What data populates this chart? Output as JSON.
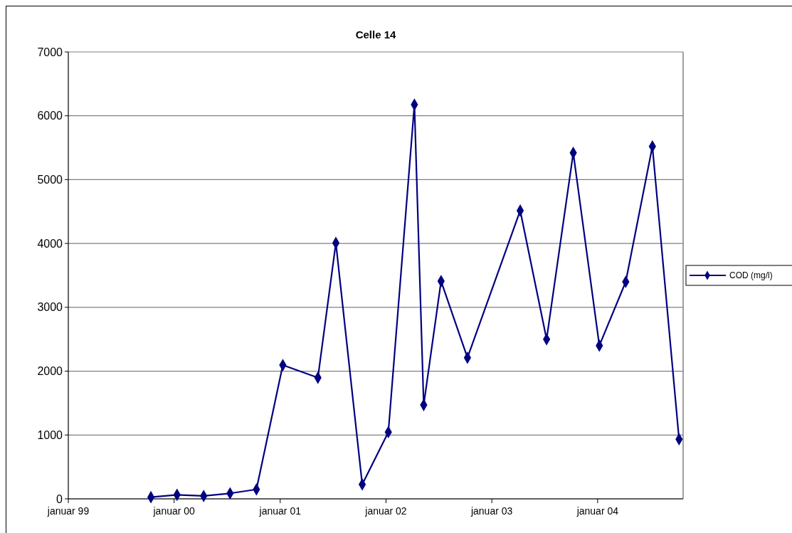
{
  "chart_data": {
    "type": "line",
    "title": "Celle 14",
    "x": [
      "1999-10-13",
      "2000-01-11",
      "2000-04-12",
      "2000-07-12",
      "2000-10-11",
      "2001-01-10",
      "2001-05-11",
      "2001-07-12",
      "2001-10-11",
      "2002-01-09",
      "2002-04-09",
      "2002-05-11",
      "2002-07-10",
      "2002-10-09",
      "2003-04-09",
      "2003-07-09",
      "2003-10-09",
      "2004-01-07",
      "2004-04-07",
      "2004-07-08",
      "2004-10-08"
    ],
    "series": [
      {
        "name": "COD (mg/l)",
        "color": "#000080",
        "values": [
          26,
          63,
          45,
          86,
          148,
          2095,
          1897,
          4008,
          226,
          1045,
          6175,
          1470,
          3410,
          2210,
          4515,
          2500,
          5420,
          2400,
          3400,
          5520,
          933
        ]
      }
    ],
    "xlim": [
      "1999-01-01",
      "2004-10-22"
    ],
    "xticks": [
      {
        "value": "1999-01-01",
        "label": "januar 99"
      },
      {
        "value": "2000-01-01",
        "label": "januar 00"
      },
      {
        "value": "2001-01-01",
        "label": "januar 01"
      },
      {
        "value": "2002-01-01",
        "label": "januar 02"
      },
      {
        "value": "2003-01-01",
        "label": "januar 03"
      },
      {
        "value": "2004-01-01",
        "label": "januar 04"
      }
    ],
    "ylim": [
      0,
      7000
    ],
    "yticks": [
      0,
      1000,
      2000,
      3000,
      4000,
      5000,
      6000,
      7000
    ],
    "grid": "y",
    "legend": "right",
    "marker": "diamond",
    "line_style": "solid"
  }
}
